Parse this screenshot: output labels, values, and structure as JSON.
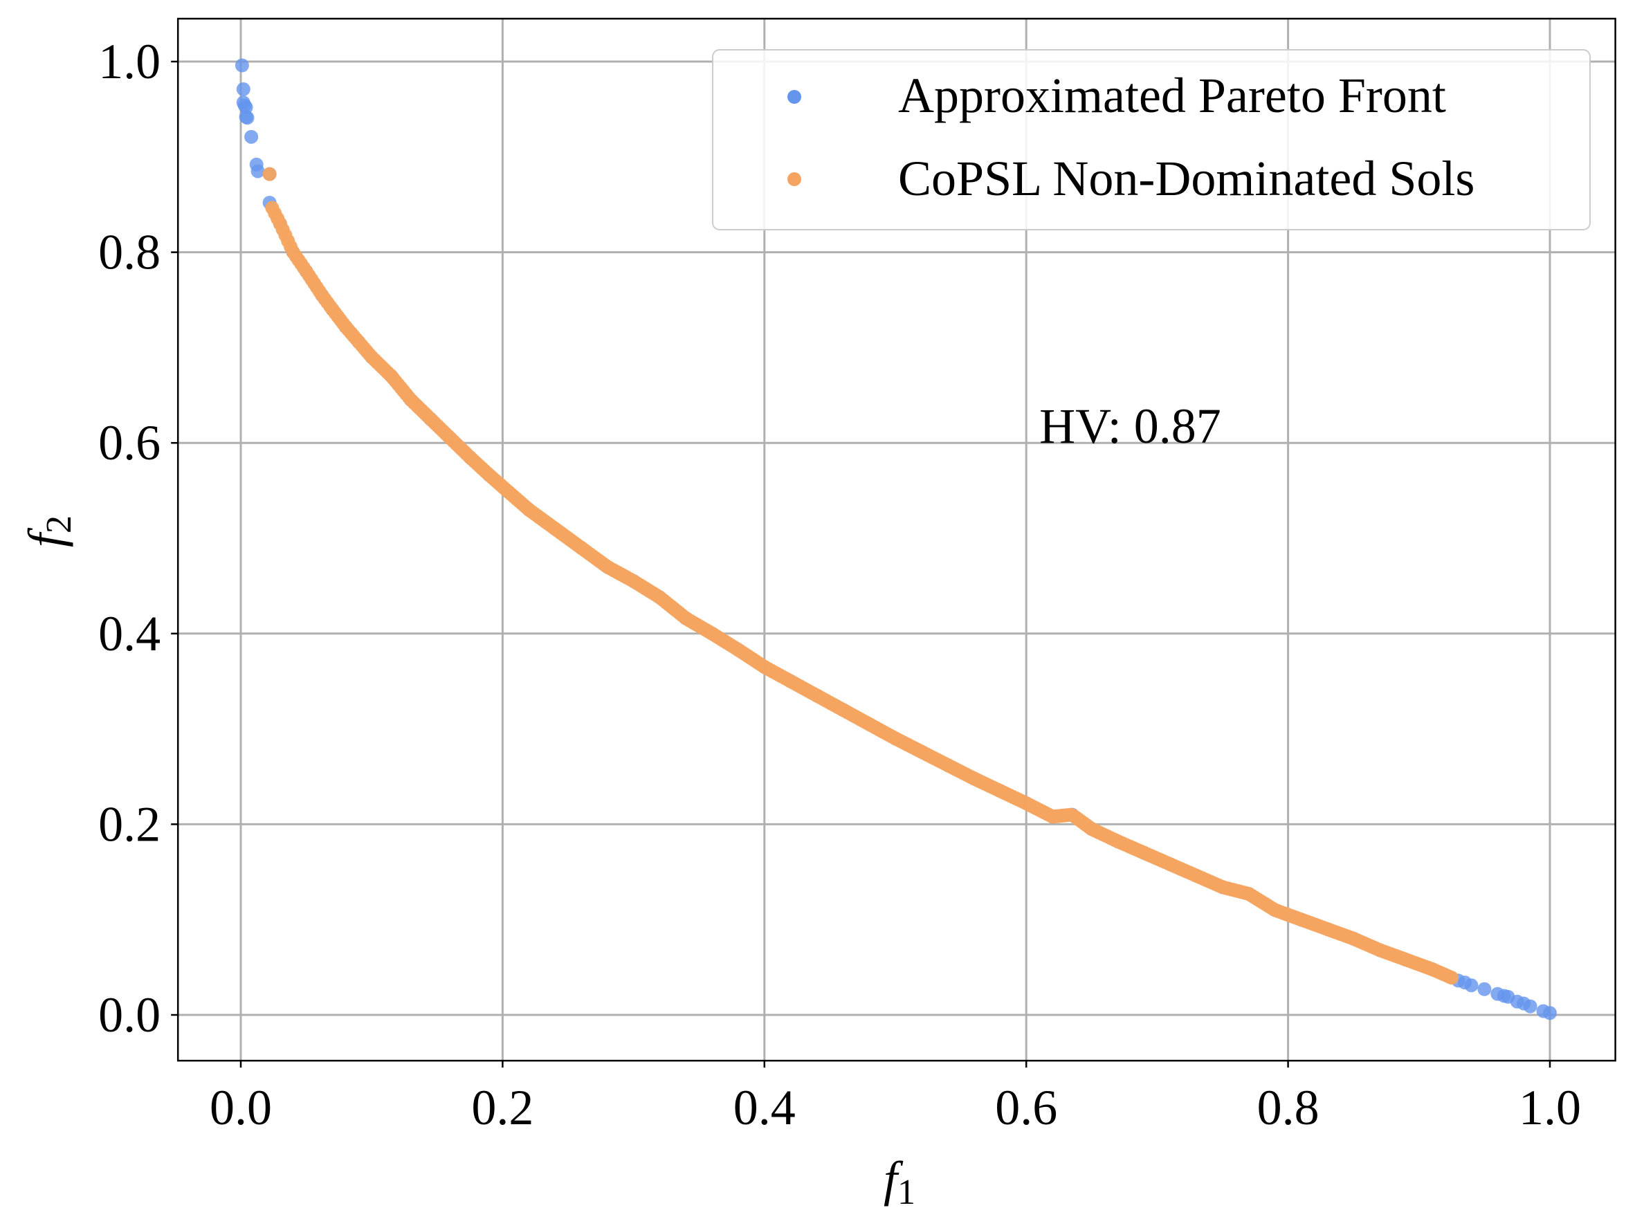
{
  "chart_data": {
    "type": "scatter",
    "xlabel": "f",
    "xlabel_subscript": "1",
    "ylabel": "f",
    "ylabel_subscript": "2",
    "xlim": [
      -0.048,
      1.05
    ],
    "ylim": [
      -0.048,
      1.045
    ],
    "x_ticks": [
      0.0,
      0.2,
      0.4,
      0.6,
      0.8,
      1.0
    ],
    "x_tick_labels": [
      "0.0",
      "0.2",
      "0.4",
      "0.6",
      "0.8",
      "1.0"
    ],
    "y_ticks": [
      0.0,
      0.2,
      0.4,
      0.6,
      0.8,
      1.0
    ],
    "y_tick_labels": [
      "0.0",
      "0.2",
      "0.4",
      "0.6",
      "0.8",
      "1.0"
    ],
    "grid": true,
    "legend_position": "top-right",
    "annotation": {
      "text": "HV: 0.87",
      "x": 0.61,
      "y": 0.6
    },
    "series": [
      {
        "name": "Approximated Pareto Front",
        "color": "#6495ED",
        "points": [
          [
            0.001,
            0.996
          ],
          [
            0.002,
            0.971
          ],
          [
            0.002,
            0.957
          ],
          [
            0.003,
            0.954
          ],
          [
            0.004,
            0.952
          ],
          [
            0.004,
            0.942
          ],
          [
            0.005,
            0.941
          ],
          [
            0.008,
            0.921
          ],
          [
            0.012,
            0.892
          ],
          [
            0.013,
            0.885
          ],
          [
            0.022,
            0.882
          ],
          [
            0.022,
            0.852
          ],
          [
            0.03,
            0.83
          ],
          [
            0.04,
            0.8
          ],
          [
            0.05,
            0.78
          ],
          [
            0.062,
            0.755
          ],
          [
            0.07,
            0.74
          ],
          [
            0.08,
            0.722
          ],
          [
            0.09,
            0.706
          ],
          [
            0.1,
            0.69
          ],
          [
            0.115,
            0.67
          ],
          [
            0.13,
            0.645
          ],
          [
            0.145,
            0.625
          ],
          [
            0.16,
            0.605
          ],
          [
            0.175,
            0.585
          ],
          [
            0.19,
            0.566
          ],
          [
            0.205,
            0.548
          ],
          [
            0.22,
            0.53
          ],
          [
            0.24,
            0.51
          ],
          [
            0.26,
            0.49
          ],
          [
            0.28,
            0.47
          ],
          [
            0.3,
            0.455
          ],
          [
            0.32,
            0.438
          ],
          [
            0.34,
            0.416
          ],
          [
            0.36,
            0.4
          ],
          [
            0.38,
            0.383
          ],
          [
            0.4,
            0.365
          ],
          [
            0.42,
            0.35
          ],
          [
            0.44,
            0.335
          ],
          [
            0.46,
            0.32
          ],
          [
            0.48,
            0.305
          ],
          [
            0.5,
            0.29
          ],
          [
            0.52,
            0.276
          ],
          [
            0.54,
            0.262
          ],
          [
            0.56,
            0.248
          ],
          [
            0.58,
            0.235
          ],
          [
            0.6,
            0.222
          ],
          [
            0.62,
            0.208
          ],
          [
            0.635,
            0.21
          ],
          [
            0.65,
            0.195
          ],
          [
            0.67,
            0.182
          ],
          [
            0.69,
            0.17
          ],
          [
            0.71,
            0.158
          ],
          [
            0.73,
            0.146
          ],
          [
            0.75,
            0.134
          ],
          [
            0.77,
            0.127
          ],
          [
            0.79,
            0.11
          ],
          [
            0.81,
            0.1
          ],
          [
            0.83,
            0.09
          ],
          [
            0.85,
            0.08
          ],
          [
            0.87,
            0.068
          ],
          [
            0.89,
            0.058
          ],
          [
            0.91,
            0.048
          ],
          [
            0.93,
            0.036
          ],
          [
            0.935,
            0.034
          ],
          [
            0.94,
            0.031
          ],
          [
            0.95,
            0.027
          ],
          [
            0.96,
            0.022
          ],
          [
            0.965,
            0.02
          ],
          [
            0.968,
            0.019
          ],
          [
            0.975,
            0.014
          ],
          [
            0.98,
            0.012
          ],
          [
            0.985,
            0.009
          ],
          [
            0.995,
            0.004
          ],
          [
            1.0,
            0.002
          ]
        ]
      },
      {
        "name": "CoPSL Non-Dominated Sols",
        "color": "#F4A460",
        "range": [
          0.022,
          0.925
        ],
        "points": []
      }
    ]
  }
}
